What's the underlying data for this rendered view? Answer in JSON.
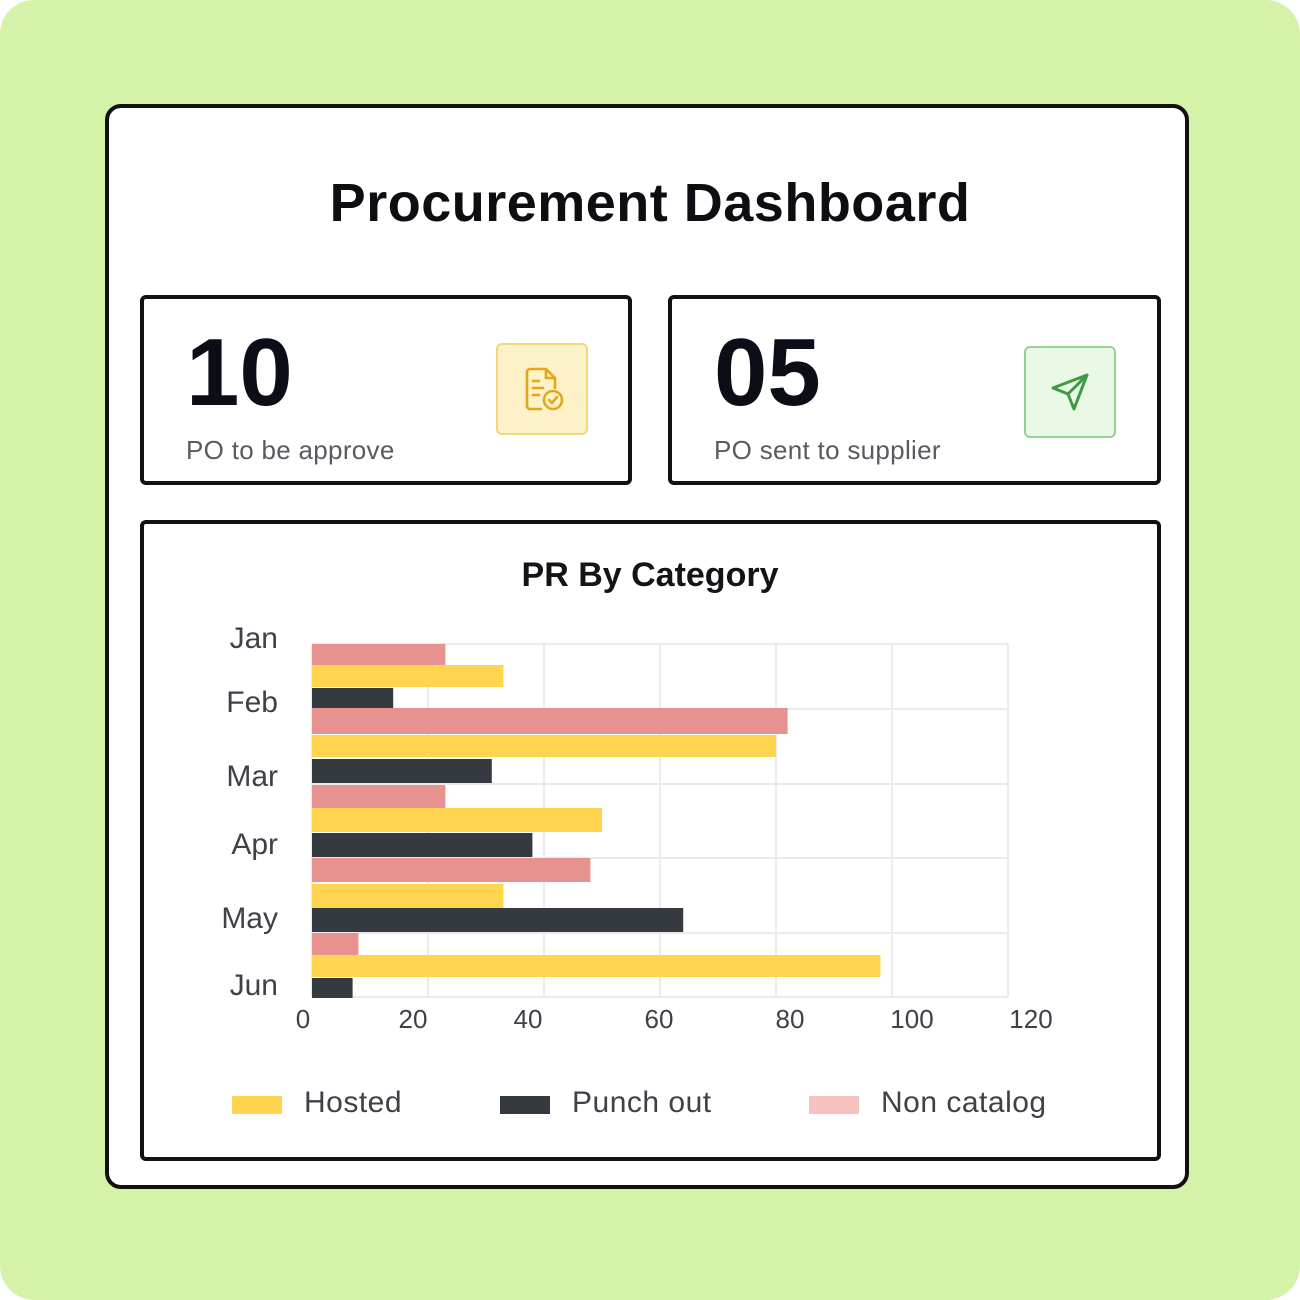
{
  "title": "Procurement Dashboard",
  "cards": [
    {
      "value": "10",
      "label": "PO to be approve",
      "icon": "document-check-icon",
      "accent": "#e3b31c",
      "icon_bg": "#fdf1c8"
    },
    {
      "value": "05",
      "label": "PO sent to supplier",
      "icon": "send-icon",
      "accent": "#45a046",
      "icon_bg": "#e9f9e6"
    }
  ],
  "chart_title": "PR By Category",
  "chart_data": {
    "type": "bar",
    "orientation": "horizontal",
    "title": "PR By Category",
    "categories": [
      "Jan",
      "Feb",
      "Mar",
      "Apr",
      "May",
      "Jun"
    ],
    "series": [
      {
        "name": "Hosted",
        "color": "#ffd54f",
        "values": [
          33,
          80,
          50,
          33,
          98,
          0
        ]
      },
      {
        "name": "Punch out",
        "color": "#343a40",
        "values": [
          14,
          31,
          38,
          64,
          0,
          7
        ]
      },
      {
        "name": "Non catalog",
        "color": "#e8928f",
        "values": [
          23,
          82,
          23,
          48,
          8,
          0
        ]
      }
    ],
    "xlim": [
      0,
      120
    ],
    "xticks": [
      "0",
      "20",
      "40",
      "60",
      "80",
      "100",
      "120"
    ],
    "grid": true,
    "legend": "bottom",
    "legend_swatch_colors": [
      "#ffd54f",
      "#343a40",
      "#f5c2c0"
    ]
  }
}
